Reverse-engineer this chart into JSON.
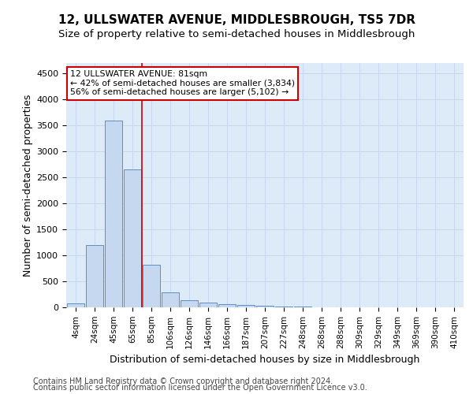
{
  "title": "12, ULLSWATER AVENUE, MIDDLESBROUGH, TS5 7DR",
  "subtitle": "Size of property relative to semi-detached houses in Middlesbrough",
  "xlabel": "Distribution of semi-detached houses by size in Middlesbrough",
  "ylabel": "Number of semi-detached properties",
  "footer1": "Contains HM Land Registry data © Crown copyright and database right 2024.",
  "footer2": "Contains public sector information licensed under the Open Government Licence v3.0.",
  "bar_labels": [
    "4sqm",
    "24sqm",
    "45sqm",
    "65sqm",
    "85sqm",
    "106sqm",
    "126sqm",
    "146sqm",
    "166sqm",
    "187sqm",
    "207sqm",
    "227sqm",
    "248sqm",
    "268sqm",
    "288sqm",
    "309sqm",
    "329sqm",
    "349sqm",
    "369sqm",
    "390sqm",
    "410sqm"
  ],
  "bar_values": [
    75,
    1200,
    3600,
    2650,
    820,
    290,
    140,
    90,
    60,
    45,
    30,
    15,
    10,
    5,
    3,
    2,
    1,
    0,
    0,
    0,
    0
  ],
  "bar_color": "#c5d8f0",
  "bar_edge_color": "#5b8fc9",
  "annotation_text": "12 ULLSWATER AVENUE: 81sqm\n← 42% of semi-detached houses are smaller (3,834)\n56% of semi-detached houses are larger (5,102) →",
  "annotation_box_color": "#ffffff",
  "annotation_box_edge_color": "#cc0000",
  "vline_color": "#cc0000",
  "vline_bin_index": 4,
  "ylim": [
    0,
    4700
  ],
  "yticks": [
    0,
    500,
    1000,
    1500,
    2000,
    2500,
    3000,
    3500,
    4000,
    4500
  ],
  "grid_color": "#c8d8ec",
  "bg_color": "#ddeaf8",
  "title_fontsize": 11,
  "subtitle_fontsize": 9.5,
  "axis_label_fontsize": 9,
  "tick_fontsize": 8,
  "footer_fontsize": 7
}
